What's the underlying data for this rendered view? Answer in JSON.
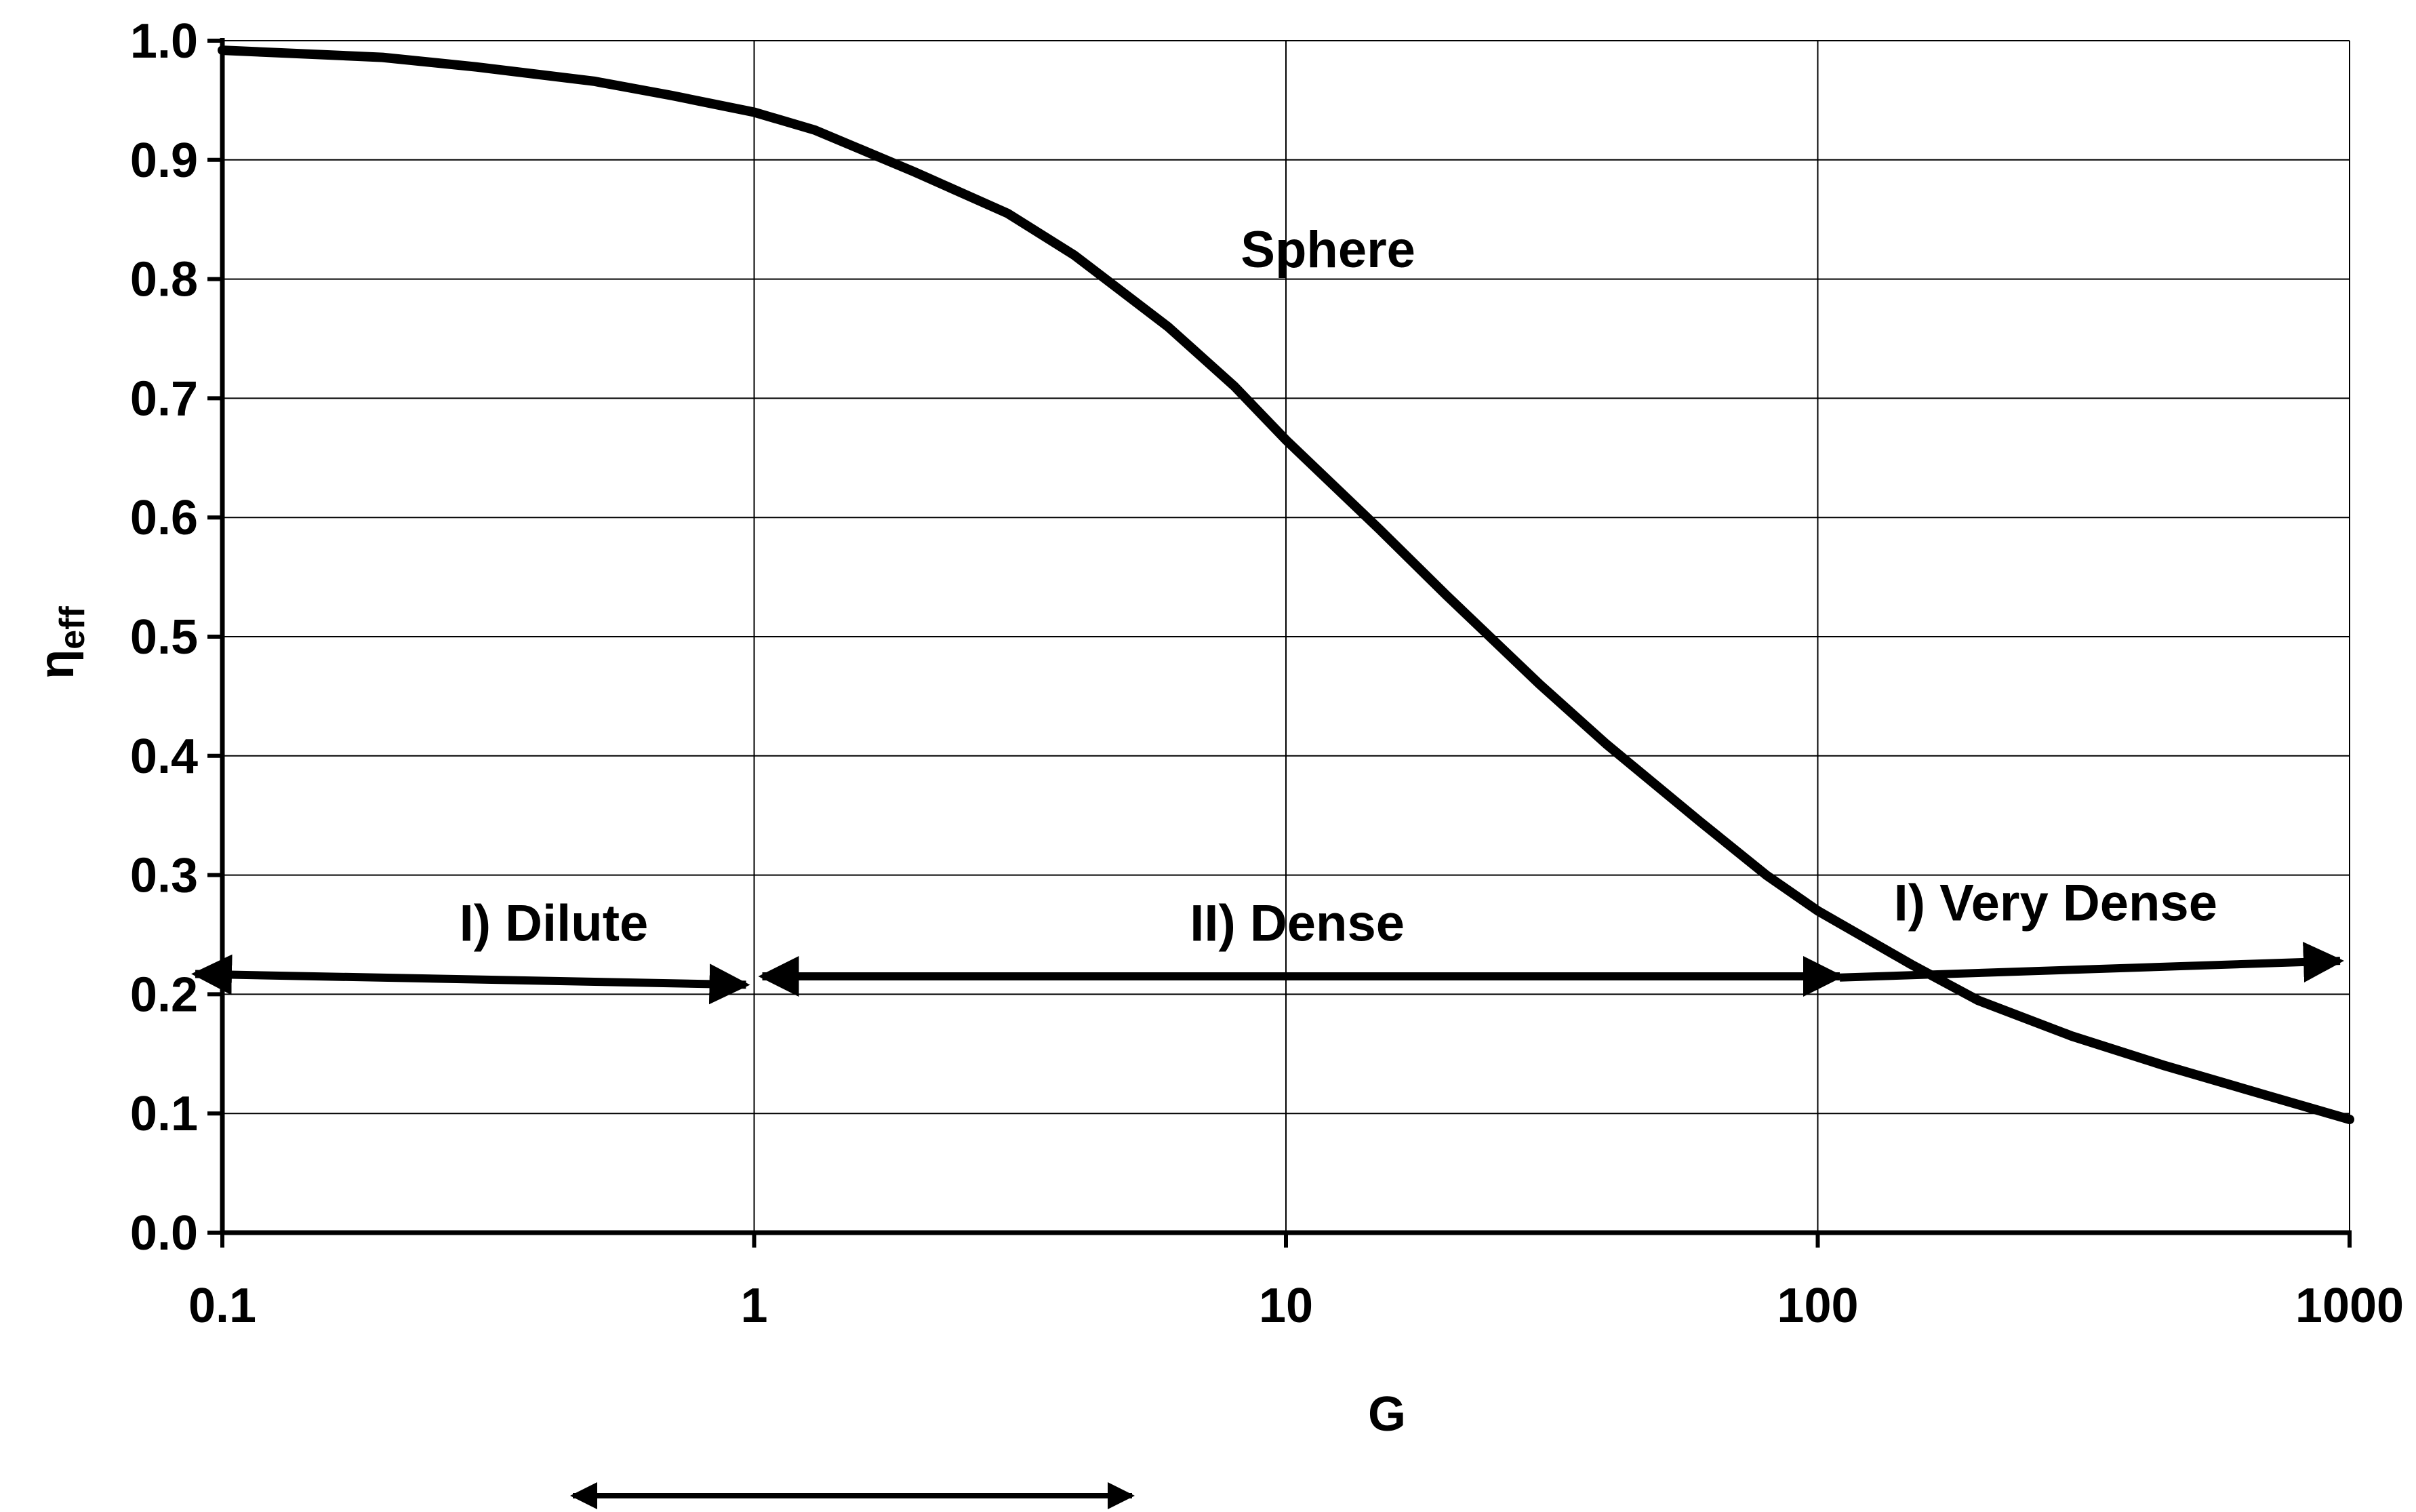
{
  "chart_data": {
    "type": "line",
    "title": "",
    "xlabel": "G",
    "ylabel": "η",
    "ylabel_sub": "eff",
    "xscale": "log",
    "xlim": [
      0.1,
      1000
    ],
    "ylim": [
      0.0,
      1.0
    ],
    "grid": true,
    "x_ticks": [
      "0.1",
      "1",
      "10",
      "100",
      "1000"
    ],
    "x_tick_values": [
      0.1,
      1,
      10,
      100,
      1000
    ],
    "y_ticks": [
      "0.0",
      "0.1",
      "0.2",
      "0.3",
      "0.4",
      "0.5",
      "0.6",
      "0.7",
      "0.8",
      "0.9",
      "1.0"
    ],
    "y_tick_values": [
      0.0,
      0.1,
      0.2,
      0.3,
      0.4,
      0.5,
      0.6,
      0.7,
      0.8,
      0.9,
      1.0
    ],
    "series": [
      {
        "name": "Sphere",
        "x": [
          0.1,
          0.2,
          0.3,
          0.5,
          0.7,
          1.0,
          1.3,
          2.0,
          3.0,
          4.0,
          6.0,
          8.0,
          10.0,
          15.0,
          20.0,
          30.0,
          40.0,
          60.0,
          80.0,
          100.0,
          150.0,
          200.0,
          300.0,
          450.0,
          700.0,
          1000.0
        ],
        "y": [
          0.992,
          0.986,
          0.978,
          0.966,
          0.954,
          0.94,
          0.925,
          0.89,
          0.855,
          0.82,
          0.76,
          0.71,
          0.665,
          0.59,
          0.535,
          0.46,
          0.41,
          0.345,
          0.3,
          0.27,
          0.225,
          0.195,
          0.165,
          0.14,
          0.115,
          0.095
        ]
      }
    ],
    "annotations": {
      "curve_label": {
        "text": "Sphere",
        "x": 12,
        "y": 0.81
      },
      "regions": [
        {
          "text": "I) Dilute",
          "x_from": 0.1,
          "x_to": 1,
          "arrow_y_from": 0.217,
          "arrow_y_to": 0.208,
          "label_x": 0.42,
          "label_y": 0.245
        },
        {
          "text": "II) Dense",
          "x_from": 1,
          "x_to": 110,
          "arrow_y_from": 0.215,
          "arrow_y_to": 0.215,
          "label_x": 10.5,
          "label_y": 0.245
        },
        {
          "text": "I) Very Dense",
          "x_from": 110,
          "x_to": 1000,
          "arrow_y_from": 0.214,
          "arrow_y_to": 0.228,
          "label_x": 280,
          "label_y": 0.262
        }
      ]
    }
  }
}
